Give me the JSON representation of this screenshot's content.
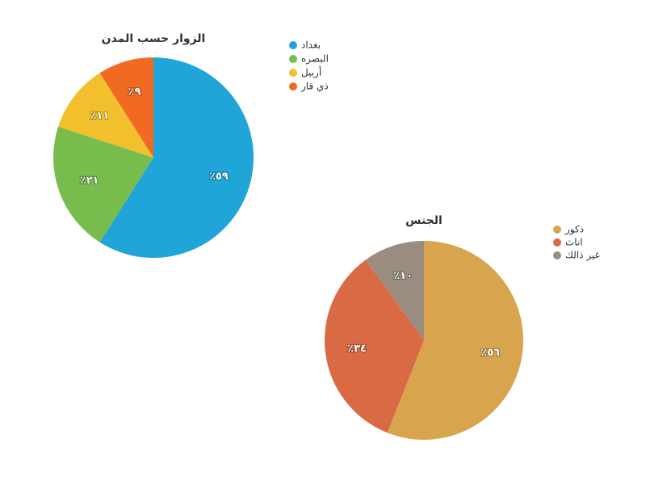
{
  "chart_data": [
    {
      "type": "pie",
      "title": "الزوار حسب المدن",
      "categories": [
        "بغداد",
        "البصره",
        "أربيل",
        "ذي قار"
      ],
      "values": [
        59,
        21,
        11,
        9
      ],
      "value_labels": [
        "٪٥٩",
        "٪٢١",
        "٪١١",
        "٪٩"
      ],
      "colors": [
        "#1fa5d8",
        "#77bc4c",
        "#f1c02c",
        "#f06a22"
      ]
    },
    {
      "type": "pie",
      "title": "الجنس",
      "categories": [
        "ذكور",
        "اناث",
        "غير ذالك"
      ],
      "values": [
        56,
        34,
        10
      ],
      "value_labels": [
        "٪٥٦",
        "٪٣٤",
        "٪١٠"
      ],
      "colors": [
        "#d9a44e",
        "#d96a44",
        "#9a8d80"
      ]
    }
  ]
}
